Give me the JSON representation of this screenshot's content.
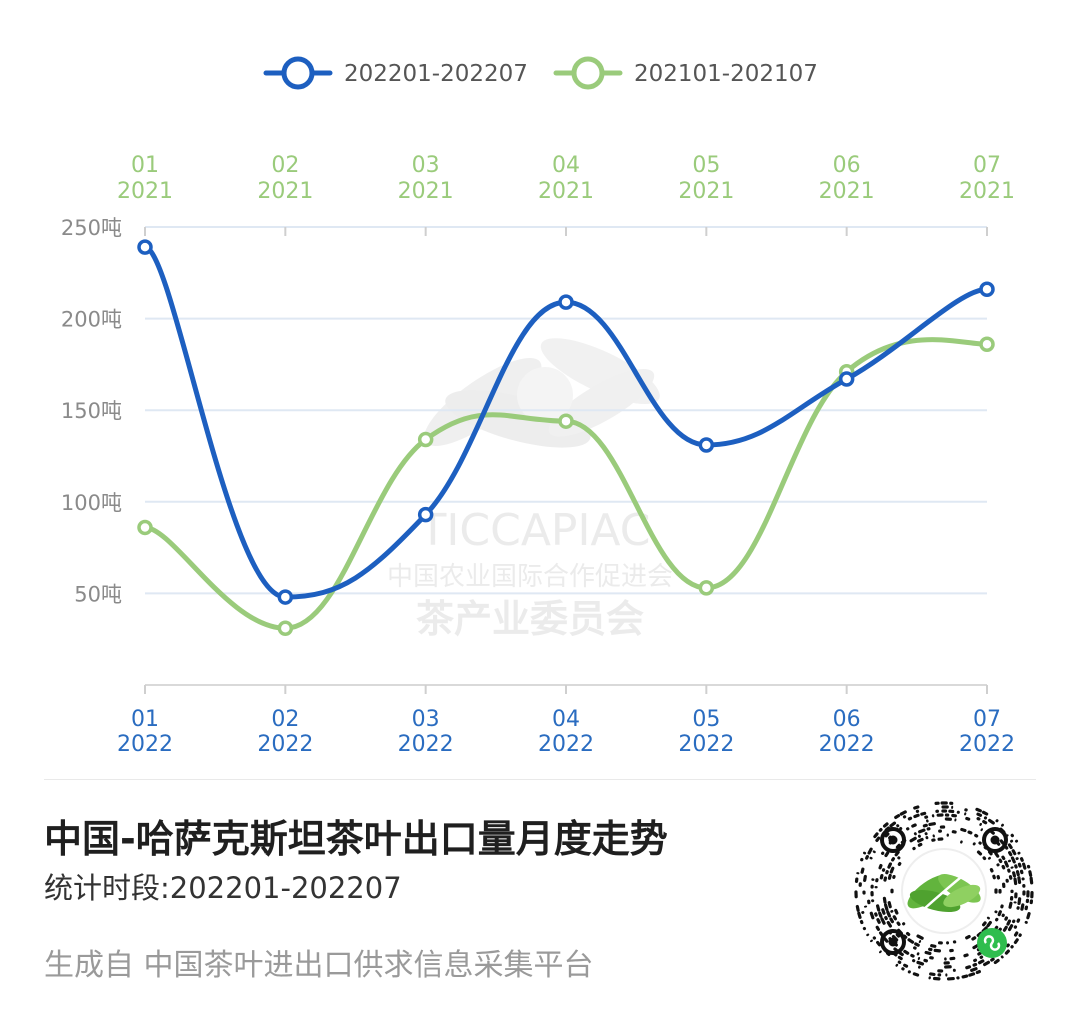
{
  "chart_data": {
    "type": "line",
    "smooth": true,
    "series": [
      {
        "name": "202201-202207",
        "color": "#1d5fc0",
        "x_axis": "bottom",
        "categories": [
          "01\n2022",
          "02\n2022",
          "03\n2022",
          "04\n2022",
          "05\n2022",
          "06\n2022",
          "07\n2022"
        ],
        "values": [
          239,
          48,
          93,
          209,
          131,
          167,
          216
        ]
      },
      {
        "name": "202101-202107",
        "color": "#9acb7b",
        "x_axis": "top",
        "categories": [
          "01\n2021",
          "02\n2021",
          "03\n2021",
          "04\n2021",
          "05\n2021",
          "06\n2021",
          "07\n2021"
        ],
        "values": [
          86,
          31,
          134,
          144,
          53,
          171,
          186
        ]
      }
    ],
    "top_axis": {
      "ticks": [
        {
          "month": "01",
          "year": "2021"
        },
        {
          "month": "02",
          "year": "2021"
        },
        {
          "month": "03",
          "year": "2021"
        },
        {
          "month": "04",
          "year": "2021"
        },
        {
          "month": "05",
          "year": "2021"
        },
        {
          "month": "06",
          "year": "2021"
        },
        {
          "month": "07",
          "year": "2021"
        }
      ]
    },
    "bottom_axis": {
      "ticks": [
        {
          "month": "01",
          "year": "2022"
        },
        {
          "month": "02",
          "year": "2022"
        },
        {
          "month": "03",
          "year": "2022"
        },
        {
          "month": "04",
          "year": "2022"
        },
        {
          "month": "05",
          "year": "2022"
        },
        {
          "month": "06",
          "year": "2022"
        },
        {
          "month": "07",
          "year": "2022"
        }
      ]
    },
    "y_axis": {
      "ylim": [
        0,
        250
      ],
      "ticks": [
        {
          "value": 50,
          "label": "50吨"
        },
        {
          "value": 100,
          "label": "100吨"
        },
        {
          "value": 150,
          "label": "150吨"
        },
        {
          "value": 200,
          "label": "200吨"
        },
        {
          "value": 250,
          "label": "250吨"
        }
      ],
      "grid": true
    },
    "legend_position": "top-center",
    "title": "中国-哈萨克斯坦茶叶出口量月度走势"
  },
  "watermark": {
    "org_abbr": "TICCAPIAC",
    "org_line1": "中国农业国际合作促进会",
    "org_line2": "茶产业委员会"
  },
  "footer": {
    "title": "中国-哈萨克斯坦茶叶出口量月度走势",
    "period": "统计时段:202201-202207",
    "source": "生成自 中国茶叶进出口供求信息采集平台"
  },
  "colors": {
    "series_2022": "#1d5fc0",
    "series_2021": "#9acb7b",
    "grid": "#dfe8f3"
  },
  "qr": {
    "icon": "mini-program-qr-code-icon"
  }
}
